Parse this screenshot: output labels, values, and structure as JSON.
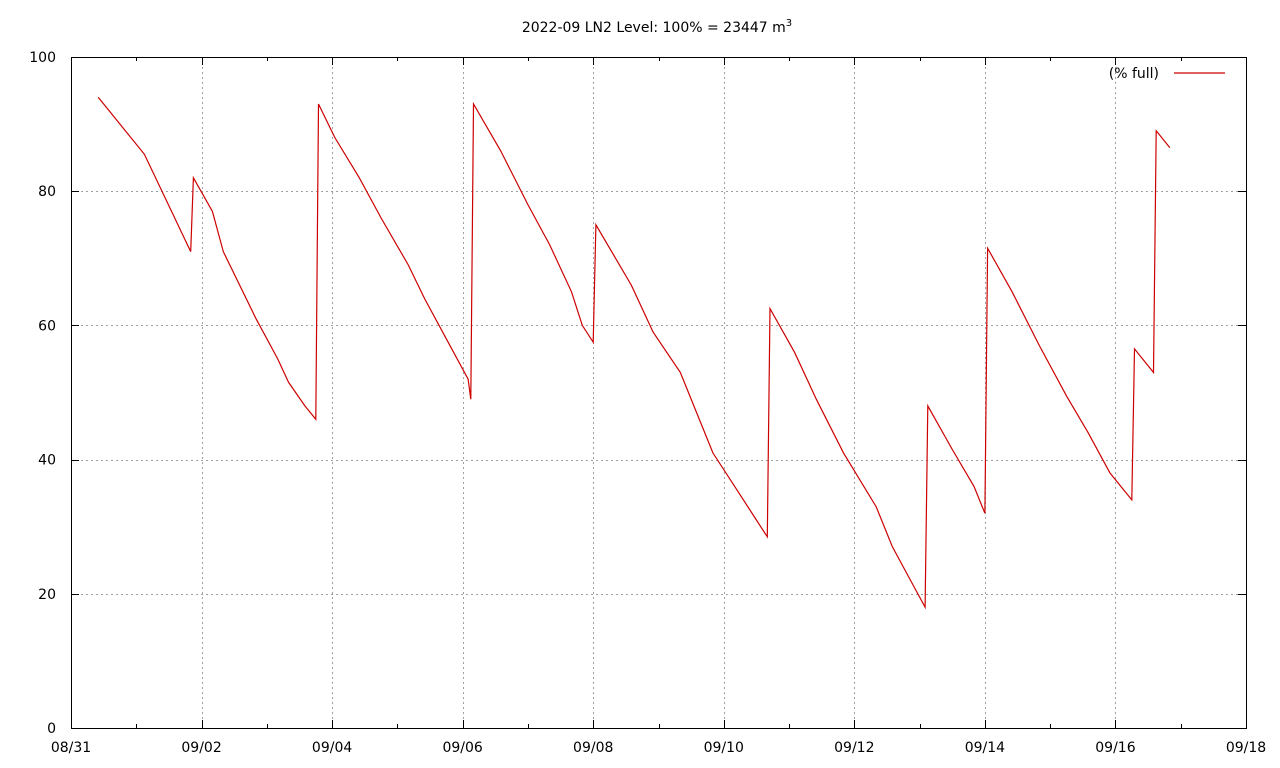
{
  "chart_data": {
    "type": "line",
    "title": "2022-09 LN2 Level: 100% = 23447 m",
    "title_superscript": "3",
    "xlabel": "",
    "ylabel": "",
    "x_scale": "date",
    "xlim": [
      "08/31",
      "09/18"
    ],
    "ylim": [
      0,
      100
    ],
    "grid": true,
    "legend_position": "top-right",
    "x_ticks": [
      "08/31",
      "09/02",
      "09/04",
      "09/06",
      "09/08",
      "09/10",
      "09/12",
      "09/14",
      "09/16",
      "09/18"
    ],
    "y_ticks": [
      "0",
      "20",
      "40",
      "60",
      "80",
      "100"
    ],
    "series": [
      {
        "name": "(% full)",
        "color": "#cc0000",
        "points": [
          [
            "08/31 10:00",
            94.0
          ],
          [
            "09/01 03:00",
            85.5
          ],
          [
            "09/01 20:00",
            71.0
          ],
          [
            "09/01 21:00",
            82.0
          ],
          [
            "09/02 04:00",
            77.0
          ],
          [
            "09/02 08:00",
            71.0
          ],
          [
            "09/02 20:00",
            61.0
          ],
          [
            "09/03 04:00",
            55.0
          ],
          [
            "09/03 08:00",
            51.5
          ],
          [
            "09/03 14:00",
            48.0
          ],
          [
            "09/03 18:00",
            46.0
          ],
          [
            "09/03 19:00",
            93.0
          ],
          [
            "09/04 01:00",
            88.0
          ],
          [
            "09/04 10:00",
            82.0
          ],
          [
            "09/04 18:00",
            76.0
          ],
          [
            "09/05 04:00",
            69.0
          ],
          [
            "09/05 10:00",
            64.0
          ],
          [
            "09/05 18:00",
            58.0
          ],
          [
            "09/06 02:00",
            52.0
          ],
          [
            "09/06 03:00",
            49.0
          ],
          [
            "09/06 04:00",
            93.0
          ],
          [
            "09/06 14:00",
            86.0
          ],
          [
            "09/07 00:00",
            78.0
          ],
          [
            "09/07 08:00",
            72.0
          ],
          [
            "09/07 16:00",
            65.0
          ],
          [
            "09/07 20:00",
            60.0
          ],
          [
            "09/08 00:00",
            57.5
          ],
          [
            "09/08 01:00",
            75.0
          ],
          [
            "09/08 14:00",
            66.0
          ],
          [
            "09/08 22:00",
            59.0
          ],
          [
            "09/09 08:00",
            53.0
          ],
          [
            "09/09 14:00",
            47.0
          ],
          [
            "09/09 20:00",
            41.0
          ],
          [
            "09/10 04:00",
            36.0
          ],
          [
            "09/10 12:00",
            31.0
          ],
          [
            "09/10 16:00",
            28.5
          ],
          [
            "09/10 17:00",
            62.5
          ],
          [
            "09/11 02:00",
            56.0
          ],
          [
            "09/11 10:00",
            49.0
          ],
          [
            "09/11 20:00",
            41.0
          ],
          [
            "09/12 08:00",
            33.0
          ],
          [
            "09/12 14:00",
            27.0
          ],
          [
            "09/12 22:00",
            21.0
          ],
          [
            "09/13 02:00",
            18.0
          ],
          [
            "09/13 03:00",
            48.0
          ],
          [
            "09/13 12:00",
            41.5
          ],
          [
            "09/13 20:00",
            36.0
          ],
          [
            "09/14 00:00",
            32.0
          ],
          [
            "09/14 01:00",
            71.5
          ],
          [
            "09/14 10:00",
            65.0
          ],
          [
            "09/14 20:00",
            57.0
          ],
          [
            "09/15 06:00",
            49.5
          ],
          [
            "09/15 14:00",
            44.0
          ],
          [
            "09/15 22:00",
            38.0
          ],
          [
            "09/16 06:00",
            34.0
          ],
          [
            "09/16 07:00",
            56.5
          ],
          [
            "09/16 14:00",
            53.0
          ],
          [
            "09/16 15:00",
            89.0
          ],
          [
            "09/16 20:00",
            86.5
          ]
        ]
      }
    ]
  }
}
